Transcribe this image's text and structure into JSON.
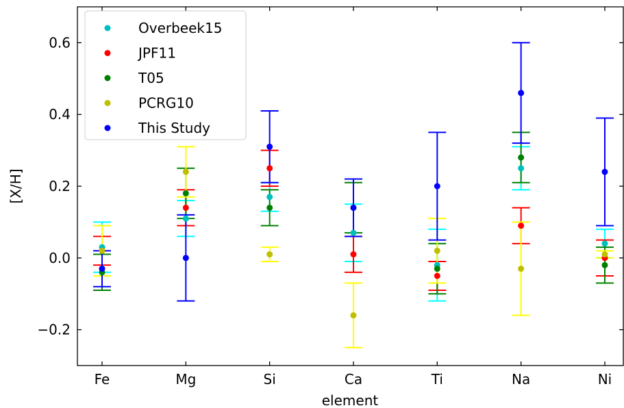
{
  "chart_data": {
    "type": "scatter",
    "title": "",
    "xlabel": "element",
    "ylabel": "[X/H]",
    "categories": [
      "Fe",
      "Mg",
      "Si",
      "Ca",
      "Ti",
      "Na",
      "Ni"
    ],
    "ylim": [
      -0.3,
      0.7
    ],
    "yticks": [
      -0.2,
      0.0,
      0.2,
      0.4,
      0.6
    ],
    "ytick_labels": [
      "−0.2",
      "0.0",
      "0.2",
      "0.4",
      "0.6"
    ],
    "grid": false,
    "legend_position": "top-left",
    "series": [
      {
        "name": "Overbeek15",
        "color": "#00bfbf",
        "errcolor": "#00ffff",
        "values": [
          0.03,
          0.11,
          0.17,
          0.07,
          -0.02,
          0.25,
          0.04
        ],
        "errors": [
          0.07,
          0.05,
          0.04,
          0.08,
          0.1,
          0.06,
          0.04
        ]
      },
      {
        "name": "JPF11",
        "color": "#ff0000",
        "errcolor": "#ff0000",
        "values": [
          0.02,
          0.14,
          0.25,
          0.01,
          -0.05,
          0.09,
          0.0
        ],
        "errors": [
          0.04,
          0.05,
          0.05,
          0.05,
          0.04,
          0.05,
          0.05
        ]
      },
      {
        "name": "T05",
        "color": "#008000",
        "errcolor": "#008000",
        "values": [
          -0.04,
          0.18,
          0.14,
          0.14,
          -0.03,
          0.28,
          -0.02
        ],
        "errors": [
          0.05,
          0.07,
          0.05,
          0.07,
          0.07,
          0.07,
          0.05
        ]
      },
      {
        "name": "PCRG10",
        "color": "#bfbf00",
        "errcolor": "#ffff00",
        "values": [
          0.02,
          0.24,
          0.01,
          -0.16,
          0.02,
          -0.03,
          0.01
        ],
        "errors": [
          0.07,
          0.07,
          0.02,
          0.09,
          0.09,
          0.13,
          0.01
        ]
      },
      {
        "name": "This Study",
        "color": "#0000ff",
        "errcolor": "#0000ff",
        "values": [
          -0.03,
          0.0,
          0.31,
          0.14,
          0.2,
          0.46,
          0.24
        ],
        "errors": [
          0.05,
          0.12,
          0.1,
          0.08,
          0.15,
          0.14,
          0.15
        ]
      }
    ]
  }
}
